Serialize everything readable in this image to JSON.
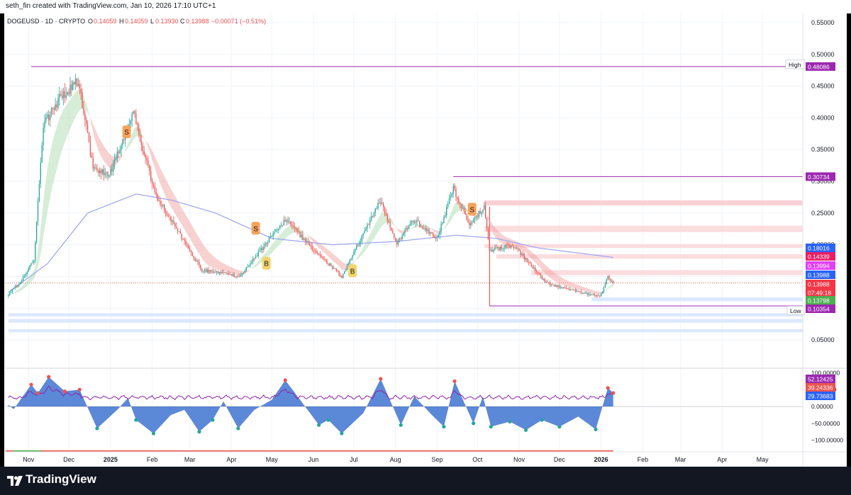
{
  "header": {
    "credit": "seth_fin created with TradingView.com, Jan 10, 2026 17:10 UTC+1"
  },
  "symbol": {
    "name": "DOGEUSD · 1D · CRYPTO",
    "o_label": "O",
    "open": "0.14059",
    "h_label": "H",
    "high": "0.14059",
    "l_label": "L",
    "low": "0.13930",
    "c_label": "C",
    "close": "0.13988",
    "change": "−0.00071 (−0.51%)"
  },
  "footer": {
    "brand": "TradingView"
  },
  "markers": [
    {
      "label": "S",
      "date_index": 88,
      "price": 0.378,
      "color": "#f7a35c"
    },
    {
      "label": "S",
      "date_index": 184,
      "price": 0.226,
      "color": "#f7a35c"
    },
    {
      "label": "B",
      "date_index": 192,
      "price": 0.171,
      "color": "#f2d46b"
    },
    {
      "label": "B",
      "date_index": 256,
      "price": 0.159,
      "color": "#f2d46b"
    },
    {
      "label": "S",
      "date_index": 345,
      "price": 0.256,
      "color": "#f7a35c"
    }
  ],
  "colors": {
    "up": "#26a69a",
    "down": "#ef5350",
    "ma": "#9aa3f5",
    "purple": "#9c27b0",
    "osc_fill": "#2962ff"
  },
  "chart_data": [
    {
      "type": "candlestick",
      "title": "DOGEUSD · 1D · CRYPTO",
      "x_axis": {
        "ticks": [
          "Nov",
          "Dec",
          "2025",
          "Feb",
          "Mar",
          "Apr",
          "May",
          "Jun",
          "Jul",
          "Aug",
          "Sep",
          "Oct",
          "Nov",
          "Dec",
          "2026",
          "Feb",
          "Mar",
          "Apr",
          "May"
        ],
        "start": "2024-10-17",
        "end": "2026-01-10"
      },
      "y_axis": {
        "ticks": [
          "0.55000",
          "0.50000",
          "0.45000",
          "0.40000",
          "0.35000",
          "0.30000",
          "0.25000",
          "0.20000",
          "0.15000",
          "0.10000",
          "0.05000"
        ],
        "range": [
          0.0,
          0.56
        ]
      },
      "price_keypoints": [
        {
          "date": "2024-10-17",
          "close": 0.122
        },
        {
          "date": "2024-10-27",
          "close": 0.145
        },
        {
          "date": "2024-11-05",
          "close": 0.175
        },
        {
          "date": "2024-11-12",
          "close": 0.39
        },
        {
          "date": "2024-11-24",
          "close": 0.43
        },
        {
          "date": "2024-12-08",
          "close": 0.46
        },
        {
          "date": "2024-12-19",
          "close": 0.32
        },
        {
          "date": "2024-12-31",
          "close": 0.31
        },
        {
          "date": "2025-01-18",
          "close": 0.41
        },
        {
          "date": "2025-02-03",
          "close": 0.28
        },
        {
          "date": "2025-03-10",
          "close": 0.16
        },
        {
          "date": "2025-04-07",
          "close": 0.15
        },
        {
          "date": "2025-05-11",
          "close": 0.24
        },
        {
          "date": "2025-06-02",
          "close": 0.19
        },
        {
          "date": "2025-06-22",
          "close": 0.15
        },
        {
          "date": "2025-07-21",
          "close": 0.27
        },
        {
          "date": "2025-08-02",
          "close": 0.2
        },
        {
          "date": "2025-08-14",
          "close": 0.24
        },
        {
          "date": "2025-09-01",
          "close": 0.21
        },
        {
          "date": "2025-09-13",
          "close": 0.29
        },
        {
          "date": "2025-09-25",
          "close": 0.23
        },
        {
          "date": "2025-10-06",
          "close": 0.26
        },
        {
          "date": "2025-10-10",
          "close": 0.19
        },
        {
          "date": "2025-10-27",
          "close": 0.2
        },
        {
          "date": "2025-11-21",
          "close": 0.14
        },
        {
          "date": "2025-12-18",
          "close": 0.125
        },
        {
          "date": "2025-12-31",
          "close": 0.118
        },
        {
          "date": "2026-01-06",
          "close": 0.15
        },
        {
          "date": "2026-01-10",
          "close": 0.13988
        }
      ],
      "moving_average_keypoints": [
        {
          "date": "2024-10-17",
          "value": 0.125
        },
        {
          "date": "2024-11-15",
          "value": 0.17
        },
        {
          "date": "2024-12-15",
          "value": 0.25
        },
        {
          "date": "2025-01-20",
          "value": 0.28
        },
        {
          "date": "2025-02-16",
          "value": 0.27
        },
        {
          "date": "2025-03-20",
          "value": 0.25
        },
        {
          "date": "2025-05-01",
          "value": 0.21
        },
        {
          "date": "2025-06-15",
          "value": 0.2
        },
        {
          "date": "2025-08-01",
          "value": 0.205
        },
        {
          "date": "2025-09-15",
          "value": 0.215
        },
        {
          "date": "2025-10-15",
          "value": 0.21
        },
        {
          "date": "2025-11-15",
          "value": 0.195
        },
        {
          "date": "2026-01-10",
          "value": 0.18
        }
      ],
      "horizontal_levels": [
        {
          "label": "High",
          "value": "0.48442",
          "y": 0.48442
        },
        {
          "value": "0.48086",
          "y": 0.48086
        },
        {
          "value": "0.30734",
          "y": 0.30734
        },
        {
          "value": "0.10354",
          "y": 0.10354
        },
        {
          "label": "Low",
          "value": "0.10305",
          "y": 0.10305
        }
      ],
      "price_tags": [
        {
          "value": "0.48086",
          "y": 0.48086,
          "color": "#9c27b0"
        },
        {
          "value": "0.30734",
          "y": 0.30734,
          "color": "#9c27b0"
        },
        {
          "value": "0.18016",
          "y": 0.18016,
          "color": "#2962ff"
        },
        {
          "value": "0.14339",
          "y": 0.14339,
          "color": "#e91e63"
        },
        {
          "value": "0.13994",
          "y": 0.13994,
          "color": "#e040fb"
        },
        {
          "value": "0.13988",
          "y": 0.13988,
          "color": "#2962ff"
        },
        {
          "value": "0.13988",
          "y": 0.13988,
          "color": "#f23645"
        },
        {
          "value": "07:49:18",
          "y": 0.13988,
          "color": "#f23645"
        },
        {
          "value": "0.13798",
          "y": 0.13798,
          "color": "#4caf50"
        },
        {
          "value": "0.10354",
          "y": 0.10354,
          "color": "#9c27b0"
        }
      ],
      "zones": [
        {
          "from": 0.262,
          "to": 0.27,
          "color": "#f8c9cc",
          "start": "2025-10-06"
        },
        {
          "from": 0.22,
          "to": 0.23,
          "color": "#fad7d9",
          "start": "2025-10-06"
        },
        {
          "from": 0.195,
          "to": 0.201,
          "color": "#fad7d9",
          "start": "2025-10-06"
        },
        {
          "from": 0.178,
          "to": 0.185,
          "color": "#fad7d9",
          "start": "2025-10-15"
        },
        {
          "from": 0.152,
          "to": 0.16,
          "color": "#fad7d9",
          "start": "2025-11-10"
        },
        {
          "from": 0.111,
          "to": 0.117,
          "color": "#d6e4fd",
          "start": "2025-12-25"
        },
        {
          "from": 0.087,
          "to": 0.092,
          "color": "#d6e4fd",
          "start": "2024-10-17"
        },
        {
          "from": 0.077,
          "to": 0.083,
          "color": "#d6e4fd",
          "start": "2024-10-17"
        },
        {
          "from": 0.062,
          "to": 0.067,
          "color": "#d6e4fd",
          "start": "2024-10-17"
        }
      ]
    },
    {
      "type": "area",
      "title": "",
      "y_axis": {
        "ticks": [
          "100.00000",
          "50.00000",
          "0.00000",
          "−50.00000",
          "−100.00000"
        ],
        "range": [
          -100,
          100
        ]
      },
      "value_tags": [
        {
          "value": "52.12425",
          "color": "#9c27b0"
        },
        {
          "value": "39.24336",
          "color": "#ef5350"
        },
        {
          "value": "29.73683",
          "color": "#2962ff"
        }
      ],
      "oscillator_keypoints": [
        {
          "date": "2024-10-17",
          "value": 5
        },
        {
          "date": "2024-10-21",
          "value": -8
        },
        {
          "date": "2024-11-03",
          "value": 65
        },
        {
          "date": "2024-11-08",
          "value": 40
        },
        {
          "date": "2024-11-16",
          "value": 88
        },
        {
          "date": "2024-11-28",
          "value": 45
        },
        {
          "date": "2024-12-09",
          "value": 50
        },
        {
          "date": "2024-12-22",
          "value": -65
        },
        {
          "date": "2025-01-06",
          "value": -10
        },
        {
          "date": "2025-01-14",
          "value": 25
        },
        {
          "date": "2025-01-20",
          "value": -40
        },
        {
          "date": "2025-02-02",
          "value": -80
        },
        {
          "date": "2025-02-15",
          "value": -25
        },
        {
          "date": "2025-02-25",
          "value": -10
        },
        {
          "date": "2025-03-08",
          "value": -75
        },
        {
          "date": "2025-03-18",
          "value": -40
        },
        {
          "date": "2025-03-26",
          "value": 15
        },
        {
          "date": "2025-04-06",
          "value": -65
        },
        {
          "date": "2025-04-18",
          "value": -10
        },
        {
          "date": "2025-05-01",
          "value": 20
        },
        {
          "date": "2025-05-11",
          "value": 78
        },
        {
          "date": "2025-05-22",
          "value": 20
        },
        {
          "date": "2025-06-05",
          "value": -55
        },
        {
          "date": "2025-06-12",
          "value": -40
        },
        {
          "date": "2025-06-22",
          "value": -80
        },
        {
          "date": "2025-07-08",
          "value": -20
        },
        {
          "date": "2025-07-21",
          "value": 82
        },
        {
          "date": "2025-08-05",
          "value": -55
        },
        {
          "date": "2025-08-15",
          "value": 30
        },
        {
          "date": "2025-08-28",
          "value": -25
        },
        {
          "date": "2025-09-06",
          "value": -60
        },
        {
          "date": "2025-09-14",
          "value": 75
        },
        {
          "date": "2025-09-28",
          "value": -50
        },
        {
          "date": "2025-10-05",
          "value": 30
        },
        {
          "date": "2025-10-11",
          "value": -60
        },
        {
          "date": "2025-10-25",
          "value": -45
        },
        {
          "date": "2025-11-06",
          "value": -70
        },
        {
          "date": "2025-11-18",
          "value": -40
        },
        {
          "date": "2025-12-01",
          "value": -60
        },
        {
          "date": "2025-12-15",
          "value": -30
        },
        {
          "date": "2025-12-28",
          "value": -68
        },
        {
          "date": "2026-01-06",
          "value": 55
        },
        {
          "date": "2026-01-10",
          "value": 40
        }
      ]
    }
  ]
}
